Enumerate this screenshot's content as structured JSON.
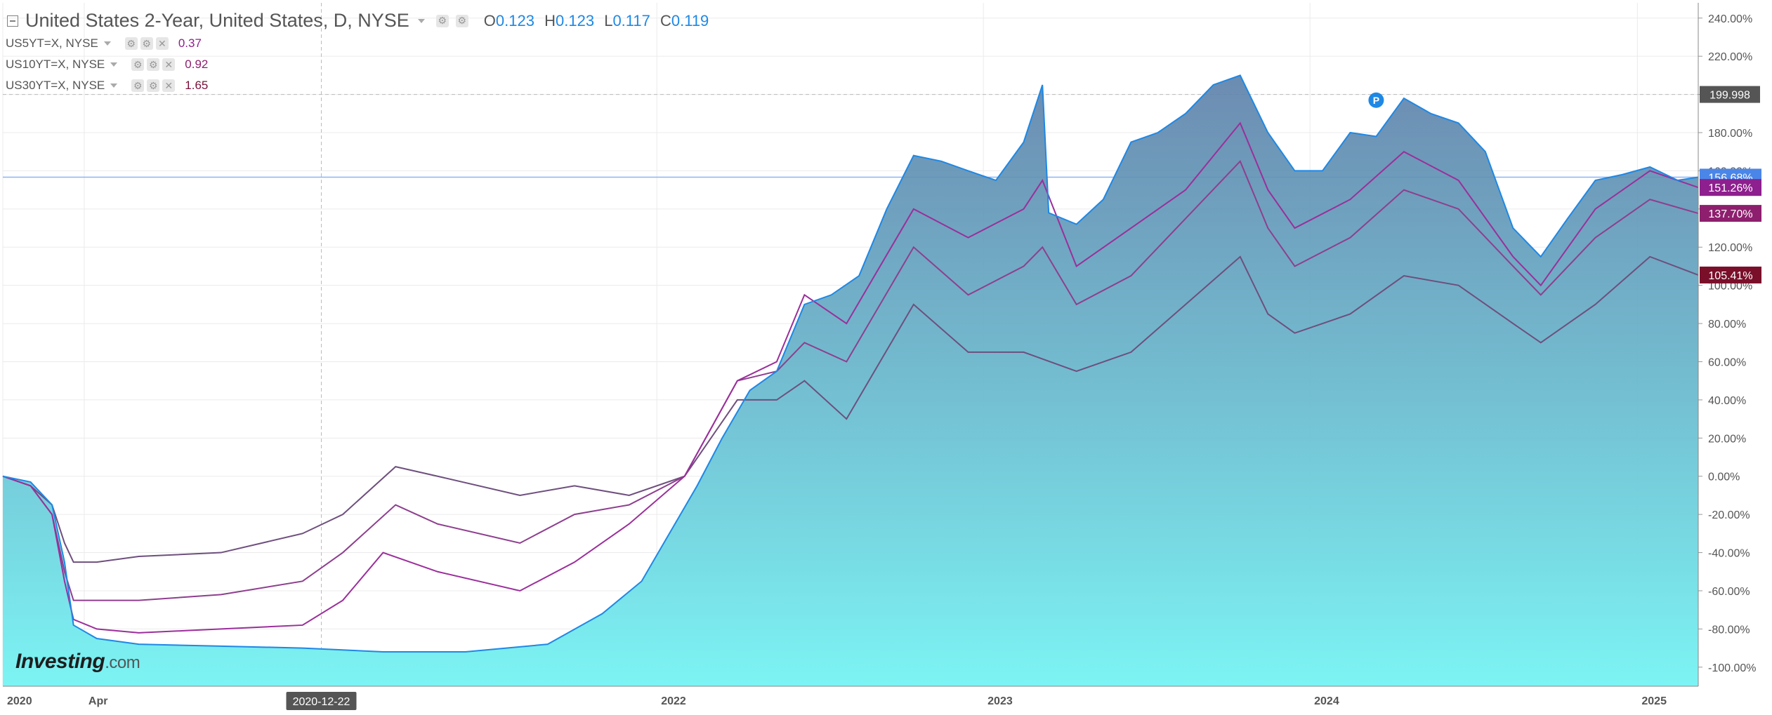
{
  "header": {
    "title": "United States 2-Year, United States, D, NYSE",
    "ohlc": [
      {
        "label": "O",
        "value": "0.123"
      },
      {
        "label": "H",
        "value": "0.123"
      },
      {
        "label": "L",
        "value": "0.117"
      },
      {
        "label": "C",
        "value": "0.119"
      }
    ]
  },
  "series_legend": [
    {
      "name": "US5YT=X, NYSE",
      "value": "0.37",
      "color": "#8e1f8e"
    },
    {
      "name": "US10YT=X, NYSE",
      "value": "0.92",
      "color": "#8e1f6e"
    },
    {
      "name": "US30YT=X, NYSE",
      "value": "1.65",
      "color": "#7a0f3a"
    }
  ],
  "crosshair": {
    "date_label": "2020-12-22",
    "value_label": "199.998"
  },
  "logo": {
    "brand": "Investing",
    "suffix": ".com"
  },
  "colors": {
    "area_top": "#5c7fa8",
    "area_bottom": "#7cf4f4",
    "line_2y": "#1e88e5",
    "line_5y": "#9b2f9b",
    "line_10y": "#8e3f8e",
    "line_30y": "#6e4f7e",
    "grid": "#ebebeb"
  },
  "chart_data": {
    "type": "area",
    "ylim": [
      -110,
      248
    ],
    "y_ticks": [
      240,
      220,
      200,
      180,
      160,
      140,
      120,
      100,
      80,
      60,
      40,
      20,
      0,
      -20,
      -40,
      -60,
      -80,
      -100
    ],
    "y_tick_labels": [
      "240.00%",
      "220.00%",
      "200.00%",
      "180.00%",
      "160.00%",
      "140.00%",
      "120.00%",
      "100.00%",
      "80.00%",
      "60.00%",
      "40.00%",
      "20.00%",
      "0.00%",
      "-20.00%",
      "-40.00%",
      "-60.00%",
      "-80.00%",
      "-100.00%"
    ],
    "x_range": [
      "2020-01-01",
      "2025-03-10"
    ],
    "x_ticks": [
      {
        "date": "2020-01-01",
        "label": "2020"
      },
      {
        "date": "2020-04-01",
        "label": "Apr"
      },
      {
        "date": "2022-01-01",
        "label": "2022"
      },
      {
        "date": "2023-01-01",
        "label": "2023"
      },
      {
        "date": "2024-01-01",
        "label": "2024"
      },
      {
        "date": "2025-01-01",
        "label": "2025"
      }
    ],
    "last_value_labels": [
      {
        "value": 156.68,
        "label": "156.68%",
        "color": "#4a86e8"
      },
      {
        "value": 151.26,
        "label": "151.26%",
        "color": "#8e1f8e"
      },
      {
        "value": 137.7,
        "label": "137.70%",
        "color": "#8e1f6e"
      },
      {
        "value": 105.41,
        "label": "105.41%",
        "color": "#7a0f2a"
      }
    ],
    "crosshair_level": 199.998,
    "series": [
      {
        "name": "United States 2-Year",
        "style": "area",
        "points": [
          [
            "2020-01-01",
            0
          ],
          [
            "2020-02-01",
            -3
          ],
          [
            "2020-02-25",
            -15
          ],
          [
            "2020-03-10",
            -45
          ],
          [
            "2020-03-20",
            -78
          ],
          [
            "2020-04-15",
            -85
          ],
          [
            "2020-06-01",
            -88
          ],
          [
            "2020-09-01",
            -89
          ],
          [
            "2020-12-01",
            -90
          ],
          [
            "2021-03-01",
            -92
          ],
          [
            "2021-06-01",
            -92
          ],
          [
            "2021-09-01",
            -88
          ],
          [
            "2021-11-01",
            -72
          ],
          [
            "2021-12-15",
            -55
          ],
          [
            "2022-01-15",
            -30
          ],
          [
            "2022-02-15",
            -5
          ],
          [
            "2022-03-15",
            20
          ],
          [
            "2022-04-15",
            45
          ],
          [
            "2022-05-15",
            55
          ],
          [
            "2022-06-15",
            90
          ],
          [
            "2022-07-15",
            95
          ],
          [
            "2022-08-15",
            105
          ],
          [
            "2022-09-15",
            140
          ],
          [
            "2022-10-15",
            168
          ],
          [
            "2022-11-15",
            165
          ],
          [
            "2022-12-15",
            160
          ],
          [
            "2023-01-15",
            155
          ],
          [
            "2023-02-15",
            175
          ],
          [
            "2023-03-08",
            205
          ],
          [
            "2023-03-15",
            138
          ],
          [
            "2023-04-15",
            132
          ],
          [
            "2023-05-15",
            145
          ],
          [
            "2023-06-15",
            175
          ],
          [
            "2023-07-15",
            180
          ],
          [
            "2023-08-15",
            190
          ],
          [
            "2023-09-15",
            205
          ],
          [
            "2023-10-15",
            210
          ],
          [
            "2023-11-15",
            180
          ],
          [
            "2023-12-15",
            160
          ],
          [
            "2024-01-15",
            160
          ],
          [
            "2024-02-15",
            180
          ],
          [
            "2024-03-15",
            178
          ],
          [
            "2024-04-15",
            198
          ],
          [
            "2024-05-15",
            190
          ],
          [
            "2024-06-15",
            185
          ],
          [
            "2024-07-15",
            170
          ],
          [
            "2024-08-15",
            130
          ],
          [
            "2024-09-15",
            115
          ],
          [
            "2024-10-15",
            135
          ],
          [
            "2024-11-15",
            155
          ],
          [
            "2024-12-15",
            158
          ],
          [
            "2025-01-15",
            162
          ],
          [
            "2025-02-15",
            155
          ],
          [
            "2025-03-10",
            156.68
          ]
        ]
      },
      {
        "name": "US5YT=X, NYSE",
        "style": "line",
        "points": [
          [
            "2020-01-01",
            0
          ],
          [
            "2020-02-01",
            -5
          ],
          [
            "2020-02-25",
            -20
          ],
          [
            "2020-03-10",
            -55
          ],
          [
            "2020-03-20",
            -75
          ],
          [
            "2020-04-15",
            -80
          ],
          [
            "2020-06-01",
            -82
          ],
          [
            "2020-09-01",
            -80
          ],
          [
            "2020-12-01",
            -78
          ],
          [
            "2021-01-15",
            -65
          ],
          [
            "2021-03-01",
            -40
          ],
          [
            "2021-05-01",
            -50
          ],
          [
            "2021-08-01",
            -60
          ],
          [
            "2021-10-01",
            -45
          ],
          [
            "2021-12-01",
            -25
          ],
          [
            "2022-02-01",
            0
          ],
          [
            "2022-04-01",
            50
          ],
          [
            "2022-05-15",
            60
          ],
          [
            "2022-06-15",
            95
          ],
          [
            "2022-08-01",
            80
          ],
          [
            "2022-10-15",
            140
          ],
          [
            "2022-12-15",
            125
          ],
          [
            "2023-02-15",
            140
          ],
          [
            "2023-03-08",
            155
          ],
          [
            "2023-04-15",
            110
          ],
          [
            "2023-06-15",
            130
          ],
          [
            "2023-08-15",
            150
          ],
          [
            "2023-10-15",
            185
          ],
          [
            "2023-11-15",
            150
          ],
          [
            "2023-12-15",
            130
          ],
          [
            "2024-02-15",
            145
          ],
          [
            "2024-04-15",
            170
          ],
          [
            "2024-06-15",
            155
          ],
          [
            "2024-08-15",
            115
          ],
          [
            "2024-09-15",
            100
          ],
          [
            "2024-11-15",
            140
          ],
          [
            "2025-01-15",
            160
          ],
          [
            "2025-03-10",
            151.26
          ]
        ]
      },
      {
        "name": "US10YT=X, NYSE",
        "style": "line",
        "points": [
          [
            "2020-01-01",
            0
          ],
          [
            "2020-02-01",
            -5
          ],
          [
            "2020-02-25",
            -20
          ],
          [
            "2020-03-10",
            -50
          ],
          [
            "2020-03-20",
            -65
          ],
          [
            "2020-04-15",
            -65
          ],
          [
            "2020-06-01",
            -65
          ],
          [
            "2020-09-01",
            -62
          ],
          [
            "2020-12-01",
            -55
          ],
          [
            "2021-01-15",
            -40
          ],
          [
            "2021-03-15",
            -15
          ],
          [
            "2021-05-01",
            -25
          ],
          [
            "2021-08-01",
            -35
          ],
          [
            "2021-10-01",
            -20
          ],
          [
            "2021-12-01",
            -15
          ],
          [
            "2022-02-01",
            0
          ],
          [
            "2022-04-01",
            50
          ],
          [
            "2022-05-15",
            55
          ],
          [
            "2022-06-15",
            70
          ],
          [
            "2022-08-01",
            60
          ],
          [
            "2022-10-15",
            120
          ],
          [
            "2022-12-15",
            95
          ],
          [
            "2023-02-15",
            110
          ],
          [
            "2023-03-08",
            120
          ],
          [
            "2023-04-15",
            90
          ],
          [
            "2023-06-15",
            105
          ],
          [
            "2023-08-15",
            135
          ],
          [
            "2023-10-15",
            165
          ],
          [
            "2023-11-15",
            130
          ],
          [
            "2023-12-15",
            110
          ],
          [
            "2024-02-15",
            125
          ],
          [
            "2024-04-15",
            150
          ],
          [
            "2024-06-15",
            140
          ],
          [
            "2024-08-15",
            110
          ],
          [
            "2024-09-15",
            95
          ],
          [
            "2024-11-15",
            125
          ],
          [
            "2025-01-15",
            145
          ],
          [
            "2025-03-10",
            137.7
          ]
        ]
      },
      {
        "name": "US30YT=X, NYSE",
        "style": "line",
        "points": [
          [
            "2020-01-01",
            0
          ],
          [
            "2020-02-01",
            -5
          ],
          [
            "2020-02-25",
            -15
          ],
          [
            "2020-03-10",
            -35
          ],
          [
            "2020-03-20",
            -45
          ],
          [
            "2020-04-15",
            -45
          ],
          [
            "2020-06-01",
            -42
          ],
          [
            "2020-09-01",
            -40
          ],
          [
            "2020-12-01",
            -30
          ],
          [
            "2021-01-15",
            -20
          ],
          [
            "2021-03-15",
            5
          ],
          [
            "2021-05-01",
            0
          ],
          [
            "2021-08-01",
            -10
          ],
          [
            "2021-10-01",
            -5
          ],
          [
            "2021-12-01",
            -10
          ],
          [
            "2022-02-01",
            0
          ],
          [
            "2022-04-01",
            40
          ],
          [
            "2022-05-15",
            40
          ],
          [
            "2022-06-15",
            50
          ],
          [
            "2022-08-01",
            30
          ],
          [
            "2022-10-15",
            90
          ],
          [
            "2022-12-15",
            65
          ],
          [
            "2023-02-15",
            65
          ],
          [
            "2023-04-15",
            55
          ],
          [
            "2023-06-15",
            65
          ],
          [
            "2023-08-15",
            90
          ],
          [
            "2023-10-15",
            115
          ],
          [
            "2023-11-15",
            85
          ],
          [
            "2023-12-15",
            75
          ],
          [
            "2024-02-15",
            85
          ],
          [
            "2024-04-15",
            105
          ],
          [
            "2024-06-15",
            100
          ],
          [
            "2024-08-15",
            80
          ],
          [
            "2024-09-15",
            70
          ],
          [
            "2024-11-15",
            90
          ],
          [
            "2025-01-15",
            115
          ],
          [
            "2025-03-10",
            105.41
          ]
        ]
      }
    ]
  }
}
